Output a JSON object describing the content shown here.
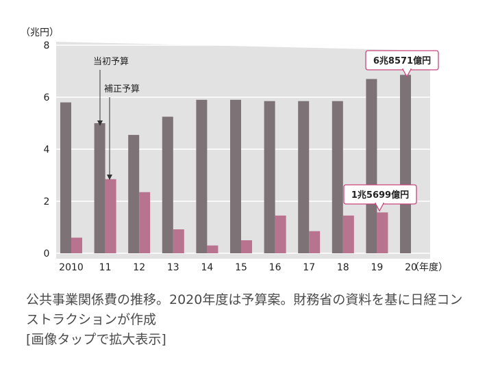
{
  "chart_data": {
    "type": "bar",
    "yunit": "（兆円）",
    "xunit": "（年度）",
    "categories": [
      "2010",
      "11",
      "12",
      "13",
      "14",
      "15",
      "16",
      "17",
      "18",
      "19",
      "20"
    ],
    "series": [
      {
        "name": "当初予算",
        "color": "#7d7275",
        "values": [
          5.8,
          5.0,
          4.55,
          5.25,
          5.9,
          5.9,
          5.85,
          5.85,
          5.85,
          6.7,
          6.86
        ]
      },
      {
        "name": "補正予算",
        "color": "#b8738f",
        "values": [
          0.6,
          2.85,
          2.35,
          0.92,
          0.3,
          0.5,
          1.45,
          0.85,
          1.45,
          1.57,
          null
        ]
      }
    ],
    "ylim": [
      0,
      8
    ],
    "yticks": [
      0,
      2,
      4,
      6,
      8
    ],
    "grid": true,
    "annotations": {
      "initial": "当初予算",
      "supplementary": "補正予算",
      "callout_2020": "6兆8571億円",
      "callout_2019": "1兆5699億円"
    },
    "colors": {
      "plot_bg": "#e3e2e2",
      "grid": "#ffffff",
      "callout_border": "#c8447d"
    }
  },
  "caption": {
    "text": "公共事業関係費の推移。2020年度は予算案。財務省の資料を基に日経コンストラクションが作成",
    "link": "[画像タップで拡大表示]"
  }
}
